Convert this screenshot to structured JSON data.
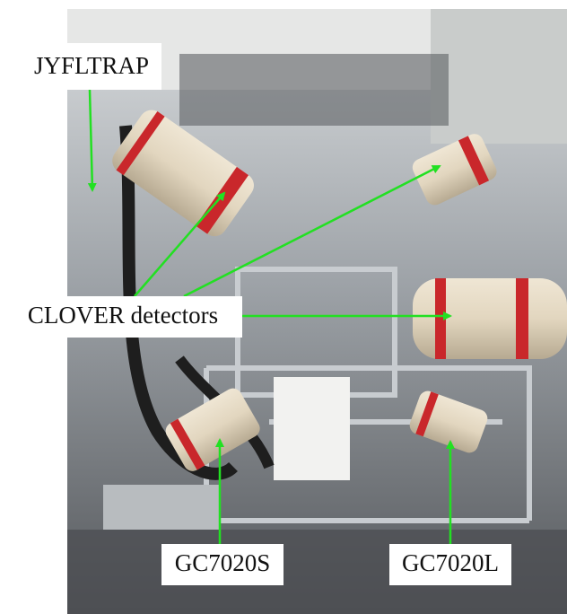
{
  "annotations": [
    {
      "label": "JYFLTRAP"
    },
    {
      "label": "CLOVER detectors"
    },
    {
      "label": "GC7020S"
    },
    {
      "label": "GC7020L"
    }
  ]
}
